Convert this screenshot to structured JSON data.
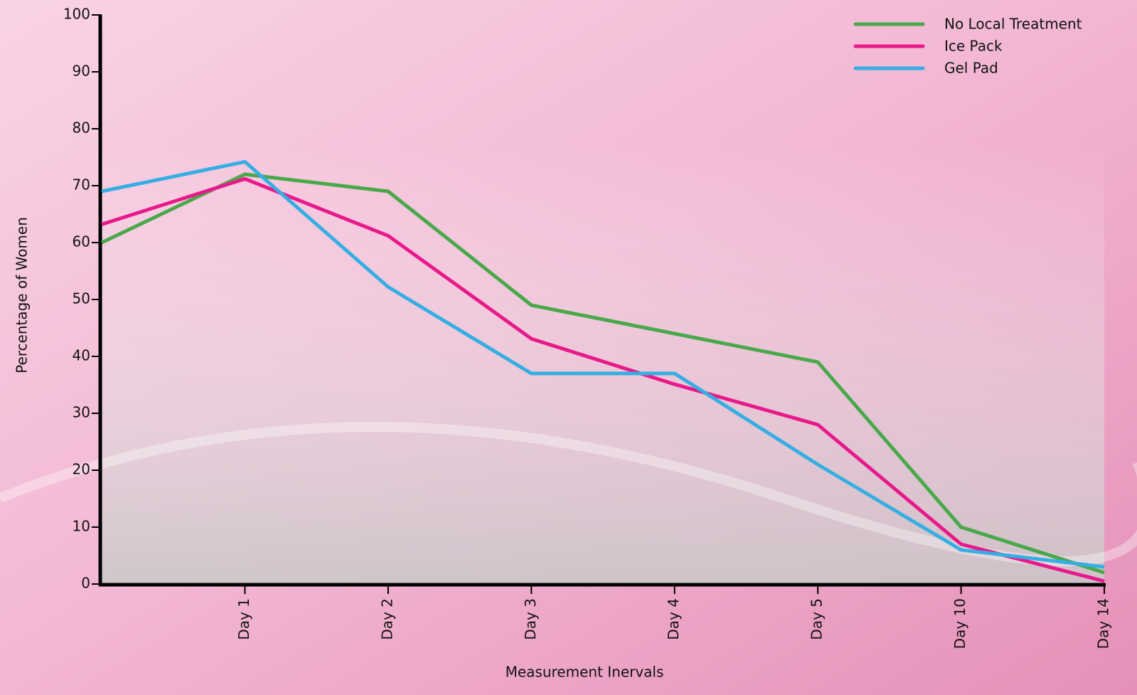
{
  "chart_data": {
    "type": "line",
    "y_label": "Percentage of Women",
    "x_label": "Measurement Inervals",
    "categories": [
      null,
      "Day 1",
      "Day 2",
      "Day 3",
      "Day 4",
      "Day 5",
      "Day 10",
      "Day 14"
    ],
    "series": [
      {
        "name": "No Local Treatment",
        "color": "#48a84a",
        "values": [
          60,
          72,
          69,
          49,
          44,
          39,
          10,
          2
        ]
      },
      {
        "name": "Ice Pack",
        "color": "#e8198b",
        "values": [
          63.2,
          71.2,
          61.2,
          43.1,
          35.1,
          28,
          7,
          0.5
        ]
      },
      {
        "name": "Gel Pad",
        "color": "#35aee3",
        "values": [
          69,
          74.2,
          52.2,
          37,
          37,
          21,
          6,
          3
        ]
      }
    ],
    "ylim": [
      0,
      100
    ],
    "yticks": [
      0,
      10,
      20,
      30,
      40,
      50,
      60,
      70,
      80,
      90,
      100
    ],
    "legend": "top-right"
  }
}
